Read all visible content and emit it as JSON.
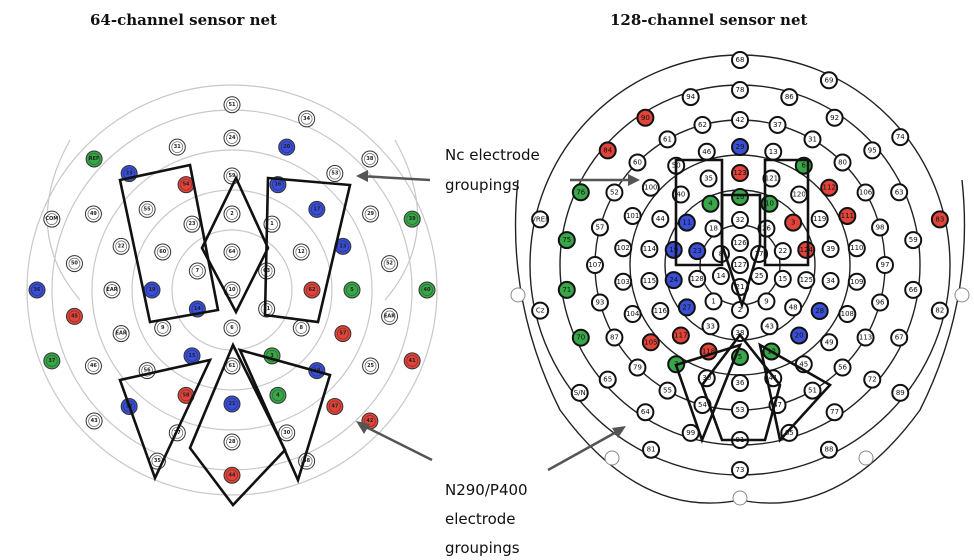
{
  "left_panel": {
    "title": "64-channel sensor net",
    "electrodes": [
      "10",
      "64",
      "63",
      "11",
      "6",
      "14",
      "7",
      "2",
      "1",
      "12",
      "62",
      "8",
      "3",
      "61",
      "15",
      "9",
      "19",
      "60",
      "23",
      "59",
      "16",
      "17",
      "13",
      "5",
      "57",
      "18",
      "4",
      "21",
      "58",
      "56",
      "EAR",
      "EAR",
      "22",
      "55",
      "54",
      "24",
      "20",
      "53",
      "29",
      "52",
      "EAR",
      "25",
      "47",
      "30",
      "28",
      "27",
      "32",
      "46",
      "45",
      "50",
      "49",
      "33",
      "31",
      "51",
      "34",
      "38",
      "39",
      "40",
      "41",
      "42",
      "48",
      "44",
      "35",
      "43",
      "37",
      "36",
      "COM",
      "REF"
    ],
    "groups": {
      "blue": [
        "13",
        "14",
        "15",
        "16",
        "17",
        "18",
        "21",
        "19",
        "20"
      ],
      "green": [
        "4",
        "5",
        "3",
        "REF"
      ],
      "red": [
        "62",
        "58",
        "57",
        "54",
        "47",
        "42"
      ],
      "green_posterior": [
        "39",
        "37",
        "40",
        "36"
      ],
      "red_posterior": [
        "41",
        "45",
        "44"
      ],
      "blue_posterior": [
        "33",
        "36",
        "32"
      ]
    }
  },
  "right_panel": {
    "title": "128-channel sensor net",
    "electrodes": [
      "127",
      "126",
      "17",
      "25",
      "21",
      "14",
      "8",
      "32",
      "26",
      "22",
      "15",
      "9",
      "2",
      "1",
      "128",
      "23",
      "18",
      "16",
      "10",
      "3",
      "124",
      "125",
      "48",
      "43",
      "38",
      "33",
      "27",
      "24",
      "19",
      "11",
      "4",
      "123",
      "121",
      "120",
      "119",
      "39",
      "34",
      "28",
      "20",
      "12",
      "5",
      "118",
      "117",
      "116",
      "115",
      "114",
      "44",
      "40",
      "35",
      "29",
      "13",
      "6",
      "112",
      "111",
      "110",
      "109",
      "108",
      "49",
      "45",
      "41",
      "36",
      "30",
      "7",
      "105",
      "104",
      "103",
      "102",
      "101",
      "100",
      "50",
      "46",
      "42",
      "37",
      "31",
      "80",
      "106",
      "98",
      "97",
      "96",
      "113",
      "56",
      "51",
      "47",
      "53",
      "54",
      "55",
      "79",
      "87",
      "93",
      "107",
      "57",
      "52",
      "60",
      "61",
      "62",
      "78",
      "86",
      "92",
      "95",
      "63",
      "59",
      "66",
      "67",
      "72",
      "77",
      "85",
      "91",
      "99",
      "64",
      "65",
      "70",
      "71",
      "75",
      "76",
      "84",
      "90",
      "94",
      "68",
      "69",
      "74",
      "83",
      "82",
      "89",
      "88",
      "73",
      "81",
      "S/N",
      "Cz",
      "VREF"
    ]
  },
  "annotations": {
    "nc_label_line1": "Nc electrode",
    "nc_label_line2": "groupings",
    "n290_label_line1": "N290/P400",
    "n290_label_line2": "electrode",
    "n290_label_line3": "groupings"
  },
  "colors": {
    "blue": "#3b4fd6",
    "green": "#3aa64a",
    "red": "#e0443a",
    "ring": "#c8c8c8",
    "outline": "#111111"
  }
}
